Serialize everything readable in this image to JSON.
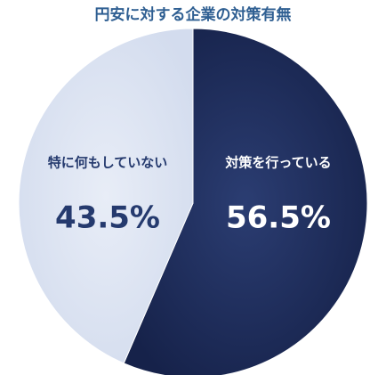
{
  "chart_data": {
    "type": "pie",
    "title": "円安に対する企業の対策有無",
    "categories": [
      "対策を行っている",
      "特に何もしていない"
    ],
    "values": [
      56.5,
      43.5
    ],
    "value_labels": [
      "56.5%",
      "43.5%"
    ],
    "colors": [
      "#1f2e5c",
      "#dee5f2"
    ],
    "label_colors": [
      "#ffffff",
      "#253a6e"
    ]
  }
}
